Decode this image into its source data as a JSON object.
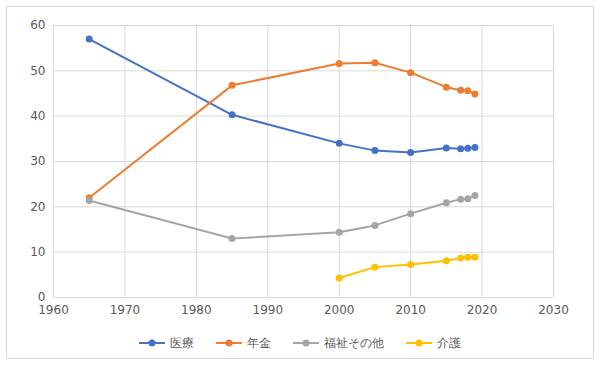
{
  "chart_data": {
    "type": "line",
    "x": [
      1965,
      1985,
      2000,
      2005,
      2010,
      2015,
      2017,
      2018,
      2019
    ],
    "series": [
      {
        "name": "医療",
        "color": "#4472c4",
        "marker": "circle",
        "values": [
          57.0,
          40.3,
          34.0,
          32.4,
          32.0,
          33.0,
          32.8,
          32.9,
          33.1
        ]
      },
      {
        "name": "年金",
        "color": "#ed7d31",
        "marker": "circle",
        "values": [
          22.0,
          46.8,
          51.6,
          51.8,
          49.6,
          46.4,
          45.7,
          45.6,
          44.9
        ]
      },
      {
        "name": "福祉その他",
        "color": "#a5a5a5",
        "marker": "circle",
        "values": [
          21.4,
          13.0,
          14.4,
          15.9,
          18.5,
          20.9,
          21.7,
          21.8,
          22.5
        ]
      },
      {
        "name": "介護",
        "color": "#ffc000",
        "marker": "circle",
        "values": [
          null,
          null,
          4.3,
          6.7,
          7.3,
          8.1,
          8.7,
          8.9,
          8.9
        ]
      }
    ],
    "xlim": [
      1960,
      2030
    ],
    "xticks": [
      1960,
      1970,
      1980,
      1990,
      2000,
      2010,
      2020,
      2030
    ],
    "ylim": [
      0,
      60
    ],
    "yticks": [
      0,
      10,
      20,
      30,
      40,
      50,
      60
    ],
    "grid": true,
    "legend": "bottom"
  }
}
